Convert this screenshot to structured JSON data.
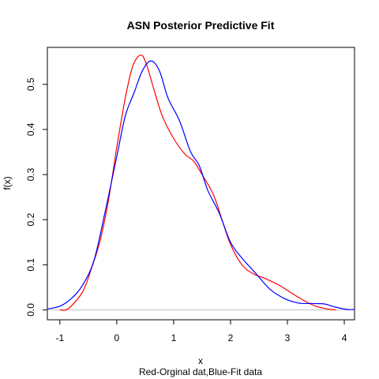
{
  "chart_data": {
    "type": "line",
    "title": "ASN Posterior Predictive Fit",
    "xlabel": "x",
    "ylabel": "f(x)",
    "subtitle": "Red-Orginal dat,Blue-Fit data",
    "xlim": [
      -1.22,
      4.18
    ],
    "ylim": [
      -0.022,
      0.582
    ],
    "x_ticks": [
      -1,
      0,
      1,
      2,
      3,
      4
    ],
    "y_ticks": [
      0.0,
      0.1,
      0.2,
      0.3,
      0.4,
      0.5
    ],
    "baseline_y": 0,
    "baseline_color": "#bebebe",
    "series": [
      {
        "color": "#ff0000",
        "points": [
          [
            -1.0,
            0.0
          ],
          [
            -0.85,
            0.003
          ],
          [
            -0.6,
            0.04
          ],
          [
            -0.45,
            0.09
          ],
          [
            -0.3,
            0.15
          ],
          [
            -0.15,
            0.24
          ],
          [
            0.0,
            0.36
          ],
          [
            0.15,
            0.47
          ],
          [
            0.28,
            0.54
          ],
          [
            0.42,
            0.565
          ],
          [
            0.52,
            0.545
          ],
          [
            0.65,
            0.49
          ],
          [
            0.8,
            0.43
          ],
          [
            1.0,
            0.38
          ],
          [
            1.2,
            0.345
          ],
          [
            1.35,
            0.33
          ],
          [
            1.5,
            0.3
          ],
          [
            1.7,
            0.255
          ],
          [
            1.85,
            0.2
          ],
          [
            2.0,
            0.145
          ],
          [
            2.2,
            0.1
          ],
          [
            2.4,
            0.08
          ],
          [
            2.6,
            0.07
          ],
          [
            2.85,
            0.055
          ],
          [
            3.1,
            0.035
          ],
          [
            3.3,
            0.02
          ],
          [
            3.5,
            0.008
          ],
          [
            3.7,
            0.002
          ],
          [
            3.85,
            0.0
          ]
        ]
      },
      {
        "color": "#0000ff",
        "points": [
          [
            -1.22,
            0.002
          ],
          [
            -1.0,
            0.008
          ],
          [
            -0.8,
            0.025
          ],
          [
            -0.6,
            0.055
          ],
          [
            -0.4,
            0.11
          ],
          [
            -0.2,
            0.22
          ],
          [
            0.0,
            0.34
          ],
          [
            0.15,
            0.43
          ],
          [
            0.3,
            0.48
          ],
          [
            0.45,
            0.53
          ],
          [
            0.6,
            0.552
          ],
          [
            0.75,
            0.53
          ],
          [
            0.9,
            0.47
          ],
          [
            1.1,
            0.42
          ],
          [
            1.3,
            0.35
          ],
          [
            1.45,
            0.32
          ],
          [
            1.6,
            0.265
          ],
          [
            1.8,
            0.215
          ],
          [
            2.0,
            0.15
          ],
          [
            2.2,
            0.115
          ],
          [
            2.45,
            0.08
          ],
          [
            2.7,
            0.045
          ],
          [
            2.95,
            0.025
          ],
          [
            3.2,
            0.015
          ],
          [
            3.45,
            0.014
          ],
          [
            3.65,
            0.013
          ],
          [
            3.85,
            0.006
          ],
          [
            4.05,
            0.001
          ],
          [
            4.18,
            0.001
          ]
        ]
      }
    ]
  }
}
